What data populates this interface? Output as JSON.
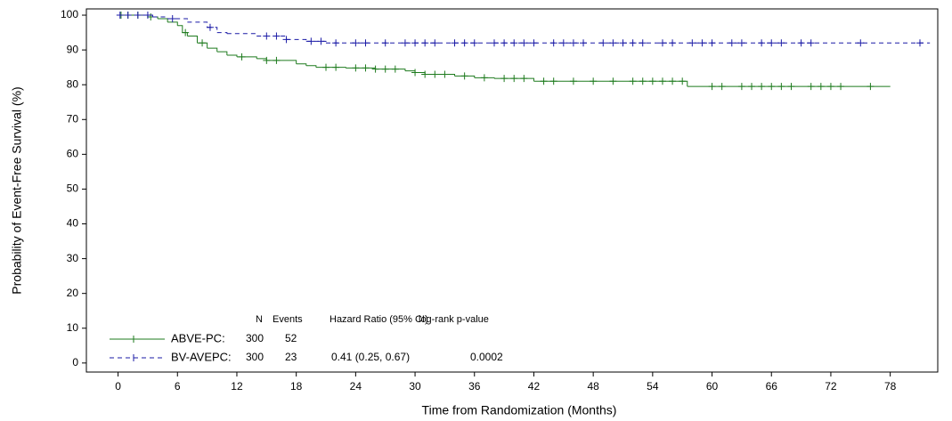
{
  "chart_data": {
    "type": "step",
    "x_label": "Time from Randomization (Months)",
    "y_label": "Probability of Event-Free Survival (%)",
    "xlim": [
      -3.2,
      82.8
    ],
    "ylim": [
      -2.6,
      101.8
    ],
    "xticks": [
      0,
      6,
      12,
      18,
      24,
      30,
      36,
      42,
      48,
      54,
      60,
      66,
      72,
      78
    ],
    "yticks": [
      0,
      10,
      20,
      30,
      40,
      50,
      60,
      70,
      80,
      90,
      100
    ],
    "series": [
      {
        "name": "ABVE-PC:",
        "color": "#1e7b1e",
        "dashed": false,
        "x": [
          0,
          3,
          4,
          5,
          6,
          6.5,
          7,
          8,
          9,
          10,
          11,
          12,
          14,
          15,
          18,
          19,
          20,
          23,
          26,
          29,
          30,
          31,
          34,
          36,
          38,
          42,
          57.5,
          78
        ],
        "values": [
          100,
          99.5,
          99,
          98,
          97,
          95,
          94,
          92,
          90.5,
          89.5,
          88.5,
          88,
          87.5,
          87,
          86,
          85.5,
          85,
          84.8,
          84.5,
          84,
          83.5,
          83,
          82.5,
          82,
          81.8,
          81,
          79.5,
          79.5
        ],
        "censored": [
          0.3,
          1,
          2,
          3.3,
          6.8,
          8.5,
          12.5,
          15,
          16,
          21,
          22,
          24,
          25,
          26,
          27,
          28,
          30,
          31,
          32,
          33,
          35,
          37,
          39,
          40,
          41,
          43,
          44,
          46,
          48,
          50,
          52,
          53,
          54,
          55,
          56,
          57,
          60,
          61,
          63,
          64,
          65,
          66,
          67,
          68,
          70,
          71,
          72,
          73,
          76
        ]
      },
      {
        "name": "BV-AVEPC:",
        "color": "#1a1aa6",
        "dashed": true,
        "x": [
          0,
          3.5,
          5,
          7,
          9,
          10,
          11,
          14,
          17,
          19,
          21,
          82
        ],
        "values": [
          100,
          99.5,
          99,
          98,
          96.5,
          95,
          94.7,
          94,
          93,
          92.5,
          92,
          92
        ],
        "censored": [
          0.2,
          1,
          2,
          3,
          5.5,
          9.3,
          15,
          16,
          17,
          19.5,
          20.5,
          22,
          24,
          25,
          27,
          29,
          30,
          31,
          32,
          34,
          35,
          36,
          38,
          39,
          40,
          41,
          42,
          44,
          45,
          46,
          47,
          49,
          50,
          51,
          52,
          53,
          55,
          56,
          58,
          59,
          60,
          62,
          63,
          65,
          66,
          67,
          69,
          70,
          75,
          81
        ]
      }
    ],
    "legend_table": {
      "header": [
        "N",
        "Events",
        "Hazard Ratio (95% CI)",
        "log-rank p-value"
      ],
      "rows": [
        [
          "300",
          "52"
        ],
        [
          "300",
          "23",
          "0.41 (0.25, 0.67)",
          "0.0002"
        ]
      ]
    }
  }
}
